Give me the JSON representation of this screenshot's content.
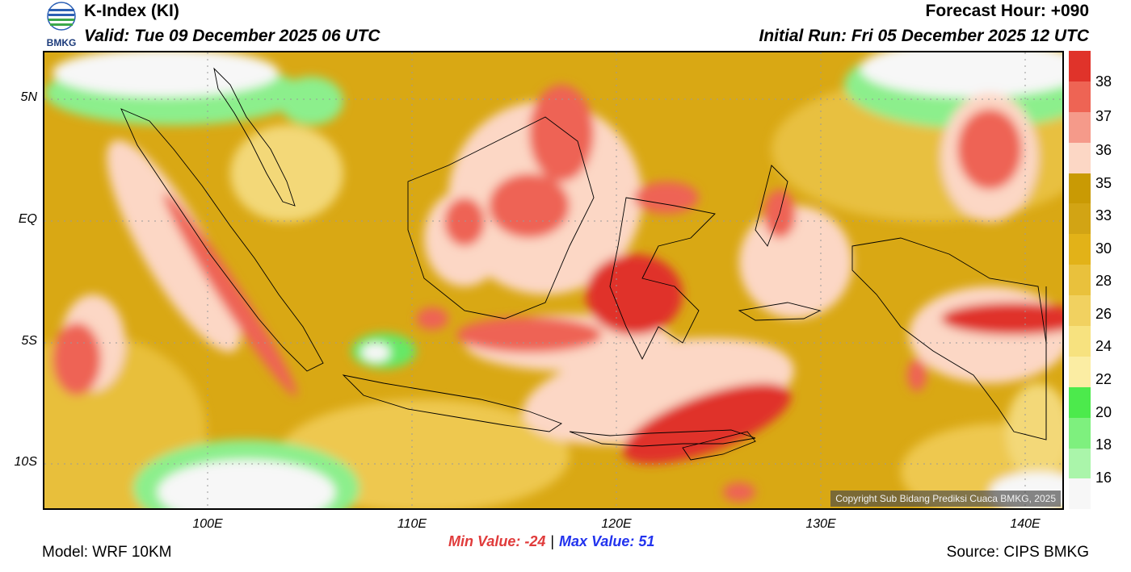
{
  "header": {
    "logo_text": "BMKG",
    "title": "K-Index (KI)",
    "valid": "Valid: Tue 09 December 2025 06 UTC",
    "forecast_hour": "Forecast Hour: +090",
    "initial_run": "Initial Run: Fri 05 December 2025 12 UTC"
  },
  "map": {
    "copyright": "Copyright Sub Bidang Prediksi Cuaca BMKG, 2025",
    "lat_labels": [
      "5N",
      "EQ",
      "5S",
      "10S"
    ],
    "lon_labels": [
      "100E",
      "110E",
      "120E",
      "130E",
      "140E"
    ]
  },
  "colorbar": {
    "labels": [
      "38",
      "37",
      "36",
      "35",
      "33",
      "30",
      "28",
      "26",
      "24",
      "22",
      "20",
      "18",
      "16"
    ],
    "colors": [
      "#e0332a",
      "#ee6454",
      "#f59a8a",
      "#fcd7c5",
      "#c99a04",
      "#d2a414",
      "#e2b218",
      "#e9c13c",
      "#f1d160",
      "#f7e27f",
      "#fbeda3",
      "#4cea4c",
      "#7ef07e",
      "#aaf5aa",
      "#f7f7f7"
    ]
  },
  "stats": {
    "min_text": "Min Value: -24",
    "separator": "|",
    "max_text": "Max Value:  51"
  },
  "footer": {
    "model": "Model: WRF 10KM",
    "source": "Source: CIPS BMKG"
  }
}
